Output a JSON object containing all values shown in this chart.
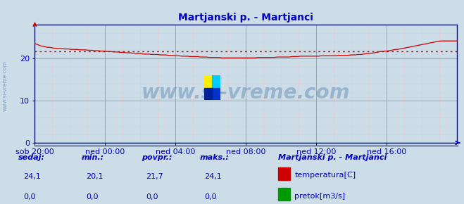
{
  "title": "Martjanski p. - Martjanci",
  "bg_color": "#ccdde8",
  "plot_bg_color": "#ccdde8",
  "x_labels": [
    "sob 20:00",
    "ned 00:00",
    "ned 04:00",
    "ned 08:00",
    "ned 12:00",
    "ned 16:00"
  ],
  "x_tick_pos": [
    0.0,
    0.1667,
    0.3333,
    0.5,
    0.6667,
    0.8333
  ],
  "y_ticks": [
    0,
    10,
    20
  ],
  "ylim_max": 28,
  "avg_line_y": 21.7,
  "avg_line_color": "#cc0000",
  "temp_line_color": "#cc0000",
  "pretok_line_color": "#009900",
  "axis_color": "#0000cc",
  "title_color": "#0000cc",
  "title_fontsize": 10,
  "watermark_text": "www.si-vreme.com",
  "watermark_color": "#7799bb",
  "watermark_fontsize": 20,
  "minor_grid_color": "#ffbbbb",
  "major_grid_color": "#9999bb",
  "sidebar_text": "www.si-vreme.com",
  "sidebar_color": "#7799bb",
  "footer_label_color": "#0000cc",
  "footer_value_color": "#0000cc",
  "footer_headers": [
    "sedaj:",
    "min.:",
    "povpr.:",
    "maks.:"
  ],
  "footer_temp_values": [
    "24,1",
    "20,1",
    "21,7",
    "24,1"
  ],
  "footer_pretok_values": [
    "0,0",
    "0,0",
    "0,0",
    "0,0"
  ],
  "legend_title": "Martjanski p. - Martjanci",
  "legend_temp": "temperatura[C]",
  "legend_pretok": "pretok[m3/s]",
  "legend_color": "#0000cc",
  "temp_data": [
    23.5,
    23.3,
    23.1,
    22.9,
    22.8,
    22.7,
    22.6,
    22.6,
    22.5,
    22.4,
    22.4,
    22.3,
    22.3,
    22.3,
    22.2,
    22.2,
    22.2,
    22.1,
    22.1,
    22.1,
    22.1,
    22.0,
    22.0,
    22.0,
    22.0,
    21.9,
    21.9,
    21.9,
    21.8,
    21.8,
    21.8,
    21.7,
    21.7,
    21.7,
    21.6,
    21.6,
    21.6,
    21.5,
    21.5,
    21.5,
    21.4,
    21.4,
    21.4,
    21.3,
    21.3,
    21.3,
    21.2,
    21.2,
    21.1,
    21.1,
    21.1,
    21.0,
    21.0,
    21.0,
    21.0,
    20.9,
    20.9,
    20.9,
    20.9,
    20.8,
    20.8,
    20.8,
    20.8,
    20.7,
    20.7,
    20.7,
    20.6,
    20.6,
    20.6,
    20.5,
    20.5,
    20.5,
    20.5,
    20.4,
    20.4,
    20.4,
    20.4,
    20.4,
    20.3,
    20.3,
    20.3,
    20.3,
    20.2,
    20.2,
    20.2,
    20.2,
    20.2,
    20.2,
    20.1,
    20.1,
    20.1,
    20.1,
    20.1,
    20.1,
    20.1,
    20.1,
    20.1,
    20.1,
    20.1,
    20.1,
    20.1,
    20.1,
    20.1,
    20.1,
    20.1,
    20.2,
    20.2,
    20.2,
    20.2,
    20.2,
    20.2,
    20.2,
    20.2,
    20.2,
    20.3,
    20.3,
    20.3,
    20.3,
    20.3,
    20.3,
    20.3,
    20.4,
    20.4,
    20.4,
    20.4,
    20.5,
    20.5,
    20.5,
    20.5,
    20.5,
    20.5,
    20.5,
    20.5,
    20.5,
    20.5,
    20.6,
    20.6,
    20.6,
    20.6,
    20.6,
    20.6,
    20.6,
    20.6,
    20.7,
    20.7,
    20.7,
    20.7,
    20.7,
    20.7,
    20.8,
    20.8,
    20.8,
    20.9,
    20.9,
    20.9,
    21.0,
    21.1,
    21.1,
    21.2,
    21.2,
    21.3,
    21.4,
    21.5,
    21.6,
    21.6,
    21.7,
    21.7,
    21.8,
    21.9,
    22.0,
    22.1,
    22.1,
    22.2,
    22.3,
    22.4,
    22.5,
    22.6,
    22.7,
    22.8,
    22.9,
    23.0,
    23.1,
    23.2,
    23.3,
    23.4,
    23.5,
    23.6,
    23.7,
    23.8,
    23.9,
    24.0,
    24.1,
    24.1,
    24.1,
    24.1,
    24.1,
    24.1,
    24.1,
    24.1,
    24.1
  ]
}
